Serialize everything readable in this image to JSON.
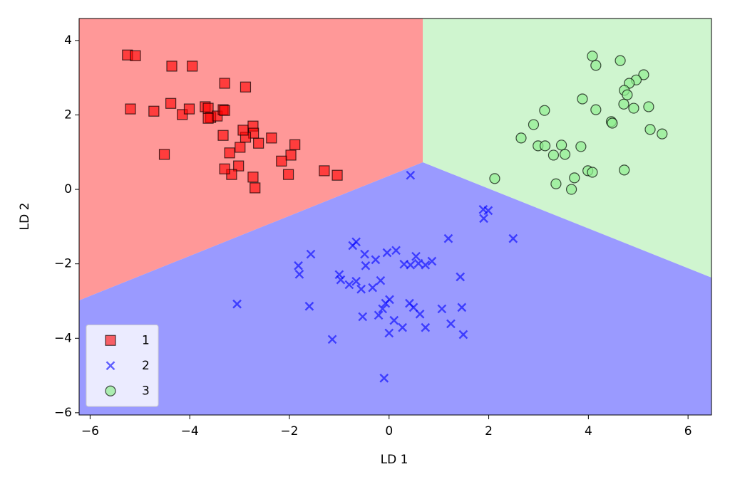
{
  "chart_data": {
    "type": "scatter",
    "x_label": "LD 1",
    "y_label": "LD 2",
    "xlim": [
      -6.22,
      6.47
    ],
    "ylim": [
      -6.06,
      4.59
    ],
    "xticks": [
      {
        "value": -6,
        "label": "−6"
      },
      {
        "value": -4,
        "label": "−4"
      },
      {
        "value": -2,
        "label": "−2"
      },
      0,
      2,
      4,
      6
    ],
    "yticks": [
      {
        "value": -6,
        "label": "−6"
      },
      {
        "value": -4,
        "label": "−4"
      },
      {
        "value": -2,
        "label": "−2"
      },
      0,
      2,
      4
    ],
    "legend": "lower left",
    "series": [
      {
        "name": "1",
        "color": "red",
        "marker": "square",
        "x": [
          -5.25,
          -5.09,
          -4.36,
          -3.95,
          -5.19,
          -4.72,
          -4.38,
          -4.15,
          -4.01,
          -3.69,
          -3.63,
          -3.58,
          -3.45,
          -3.33,
          -3.3,
          -3.3,
          -2.88,
          -3.63,
          -2.73,
          -2.72,
          -2.88,
          -2.99,
          -3.2,
          -3.02,
          -3.16,
          -3.3,
          -2.62,
          -2.36,
          -1.89,
          -1.97,
          -2.16,
          -2.02,
          -2.73,
          -2.69,
          -4.51,
          -1.3,
          -1.04,
          -3.33,
          -2.93
        ],
        "y": [
          3.61,
          3.59,
          3.31,
          3.31,
          2.16,
          2.1,
          2.31,
          2.01,
          2.16,
          2.22,
          2.18,
          1.93,
          1.97,
          2.14,
          2.12,
          2.85,
          2.75,
          1.91,
          1.7,
          1.51,
          1.4,
          1.13,
          0.98,
          0.63,
          0.4,
          0.55,
          1.24,
          1.38,
          1.2,
          0.92,
          0.76,
          0.4,
          0.33,
          0.04,
          0.94,
          0.5,
          0.38,
          1.45,
          1.59
        ]
      },
      {
        "name": "2",
        "color": "blue",
        "marker": "x",
        "x": [
          0.43,
          1.89,
          1.99,
          1.9,
          2.49,
          1.19,
          -1.57,
          -1.82,
          -1.8,
          -0.73,
          -0.66,
          -0.49,
          -0.47,
          -0.27,
          -0.04,
          0.14,
          0.54,
          0.59,
          0.3,
          0.43,
          0.73,
          0.86,
          -0.17,
          -1.0,
          -0.97,
          -0.8,
          -0.66,
          -0.56,
          -0.33,
          0.01,
          -0.07,
          -0.13,
          -0.21,
          -0.53,
          0.41,
          0.49,
          0.62,
          0.1,
          0.0,
          0.27,
          0.73,
          1.06,
          1.24,
          1.49,
          1.46,
          1.43,
          -1.6,
          -3.05,
          -1.14,
          -0.1
        ],
        "y": [
          0.38,
          -0.54,
          -0.57,
          -0.78,
          -1.32,
          -1.32,
          -1.74,
          -2.05,
          -2.28,
          -1.51,
          -1.41,
          -1.74,
          -2.05,
          -1.89,
          -1.7,
          -1.64,
          -1.8,
          -1.99,
          -2.01,
          -2.03,
          -2.03,
          -1.93,
          -2.45,
          -2.29,
          -2.43,
          -2.56,
          -2.47,
          -2.68,
          -2.64,
          -2.96,
          -3.06,
          -3.21,
          -3.38,
          -3.42,
          -3.06,
          -3.17,
          -3.35,
          -3.52,
          -3.86,
          -3.71,
          -3.71,
          -3.21,
          -3.61,
          -3.9,
          -3.17,
          -2.35,
          -3.14,
          -3.08,
          -4.03,
          -5.07
        ]
      },
      {
        "name": "3",
        "color": "lightgreen",
        "marker": "circle",
        "x": [
          4.08,
          4.15,
          4.64,
          5.11,
          4.96,
          4.82,
          4.72,
          4.78,
          4.71,
          4.91,
          5.21,
          4.15,
          3.88,
          3.12,
          2.9,
          4.46,
          4.48,
          5.24,
          5.48,
          2.65,
          2.99,
          3.13,
          3.46,
          3.53,
          3.3,
          3.85,
          3.99,
          4.08,
          3.72,
          3.35,
          3.66,
          4.72,
          2.12
        ],
        "y": [
          3.58,
          3.33,
          3.46,
          3.08,
          2.94,
          2.85,
          2.66,
          2.54,
          2.29,
          2.18,
          2.22,
          2.14,
          2.43,
          2.12,
          1.74,
          1.82,
          1.78,
          1.61,
          1.49,
          1.38,
          1.17,
          1.17,
          1.19,
          0.94,
          0.92,
          1.15,
          0.5,
          0.46,
          0.31,
          0.15,
          0.0,
          0.52,
          0.29
        ]
      }
    ]
  }
}
